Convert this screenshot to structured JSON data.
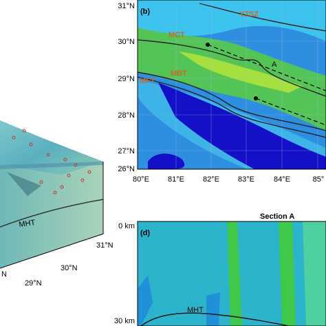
{
  "block_panel": {
    "fault_label": "MHT",
    "lat_labels": [
      "N",
      "29°N",
      "30°N",
      "31°N"
    ]
  },
  "map_panel": {
    "panel_label": "(b)",
    "lat_labels": [
      "31°N",
      "30°N",
      "29°N",
      "28°N",
      "27°N",
      "26°N"
    ],
    "lon_labels": [
      "80°E",
      "81°E",
      "82°E",
      "83°E",
      "84°E",
      "85°"
    ],
    "annotations": [
      "YZSZ",
      "MCT",
      "MBT",
      "MFT",
      "A"
    ]
  },
  "section_panel": {
    "title": "Section A",
    "panel_label": "(d)",
    "depth_labels": [
      "0 km",
      "30 km"
    ],
    "fault_label": "MHT"
  }
}
